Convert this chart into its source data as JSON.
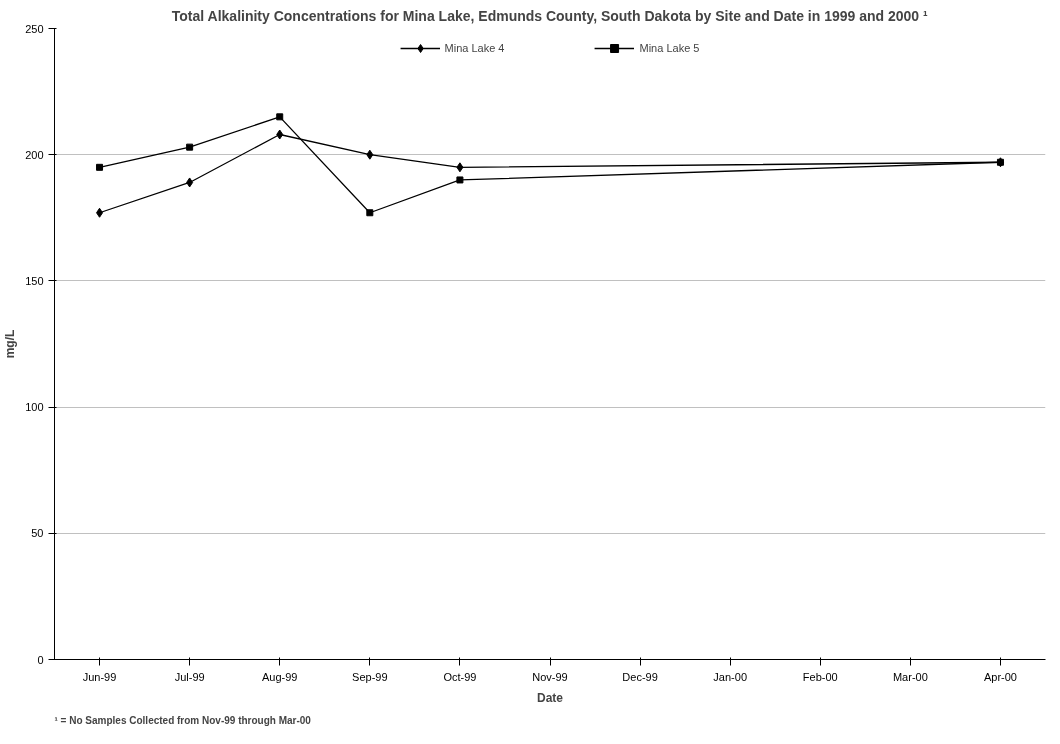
{
  "chart_data": {
    "type": "line",
    "title": "Total Alkalinity Concentrations for Mina Lake, Edmunds County, South Dakota by Site and Date in 1999 and 2000 ¹",
    "xlabel": "Date",
    "ylabel": "mg/L",
    "categories": [
      "Jun-99",
      "Jul-99",
      "Aug-99",
      "Sep-99",
      "Oct-99",
      "Nov-99",
      "Dec-99",
      "Jan-00",
      "Feb-00",
      "Mar-00",
      "Apr-00"
    ],
    "series": [
      {
        "name": "Mina Lake 4",
        "color": "#000000",
        "marker": "diamond",
        "values": [
          177,
          189,
          208,
          200,
          195,
          null,
          null,
          null,
          null,
          null,
          197
        ]
      },
      {
        "name": "Mina Lake 5",
        "color": "#000000",
        "marker": "square",
        "values": [
          195,
          203,
          215,
          177,
          190,
          null,
          null,
          null,
          null,
          null,
          197
        ]
      }
    ],
    "ylim": [
      0,
      250
    ],
    "yticks": [
      0,
      50,
      100,
      150,
      200,
      250
    ],
    "grid": "y",
    "legend": "top",
    "annotations": [
      "¹ = No Samples Collected from Nov-99 through Mar-00"
    ]
  }
}
